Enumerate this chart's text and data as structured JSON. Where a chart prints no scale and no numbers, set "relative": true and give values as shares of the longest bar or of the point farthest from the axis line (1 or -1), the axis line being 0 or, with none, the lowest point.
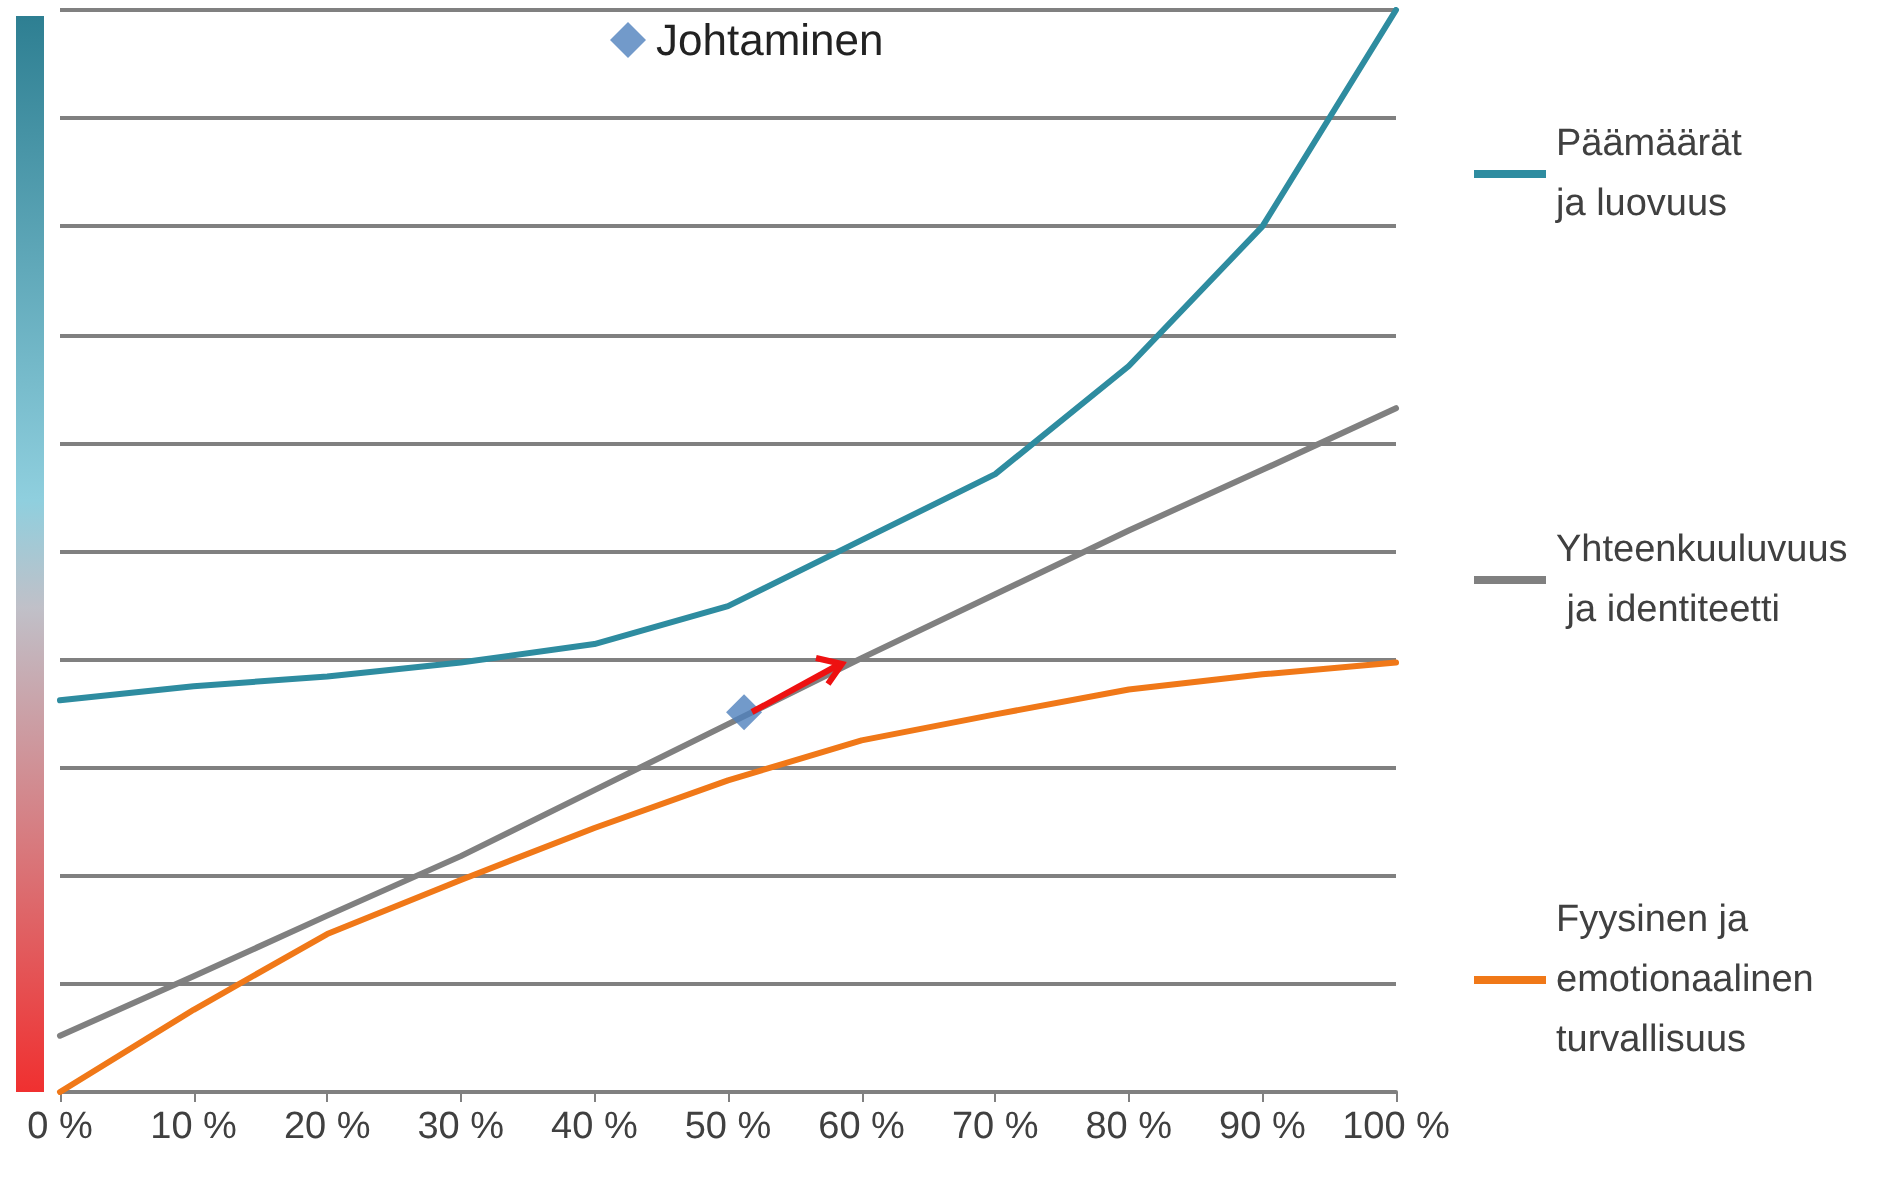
{
  "chart_data": {
    "type": "line",
    "relative": true,
    "x": [
      0,
      10,
      20,
      30,
      40,
      50,
      60,
      70,
      80,
      90,
      100
    ],
    "xlim": [
      0,
      100
    ],
    "xticks": [
      {
        "value": 0,
        "label": "0 %"
      },
      {
        "value": 10,
        "label": "10 %"
      },
      {
        "value": 20,
        "label": "20 %"
      },
      {
        "value": 30,
        "label": "30 %"
      },
      {
        "value": 40,
        "label": "40 %"
      },
      {
        "value": 50,
        "label": "50 %"
      },
      {
        "value": 60,
        "label": "60 %"
      },
      {
        "value": 70,
        "label": "70 %"
      },
      {
        "value": 80,
        "label": "80 %"
      },
      {
        "value": 90,
        "label": "90 %"
      },
      {
        "value": 100,
        "label": "100 %"
      }
    ],
    "series": [
      {
        "name": "Päämäärät ja luovuus",
        "color": "#2e8ca0",
        "values": [
          0.362,
          0.375,
          0.384,
          0.397,
          0.414,
          0.449,
          0.51,
          0.571,
          0.671,
          0.8,
          1.0
        ]
      },
      {
        "name": "Yhteenkuuluvuus ja identiteetti",
        "color": "#808080",
        "values": [
          0.052,
          0.107,
          0.163,
          0.218,
          0.279,
          0.34,
          0.401,
          0.46,
          0.519,
          0.575,
          0.632
        ]
      },
      {
        "name": "Fyysinen ja emotionaalinen turvallisuus",
        "color": "#f07818",
        "values": [
          0,
          0.076,
          0.146,
          0.196,
          0.244,
          0.288,
          0.325,
          0.349,
          0.372,
          0.386,
          0.397
        ]
      },
      {
        "name": "Johtaminen",
        "type": "scatter",
        "color": "#4f81bd",
        "x": [
          51.2
        ],
        "values": [
          0.351
        ],
        "marker": "diamond"
      }
    ],
    "grid": "y",
    "legend": "right",
    "marker": "none",
    "line_style": "solid"
  }
}
